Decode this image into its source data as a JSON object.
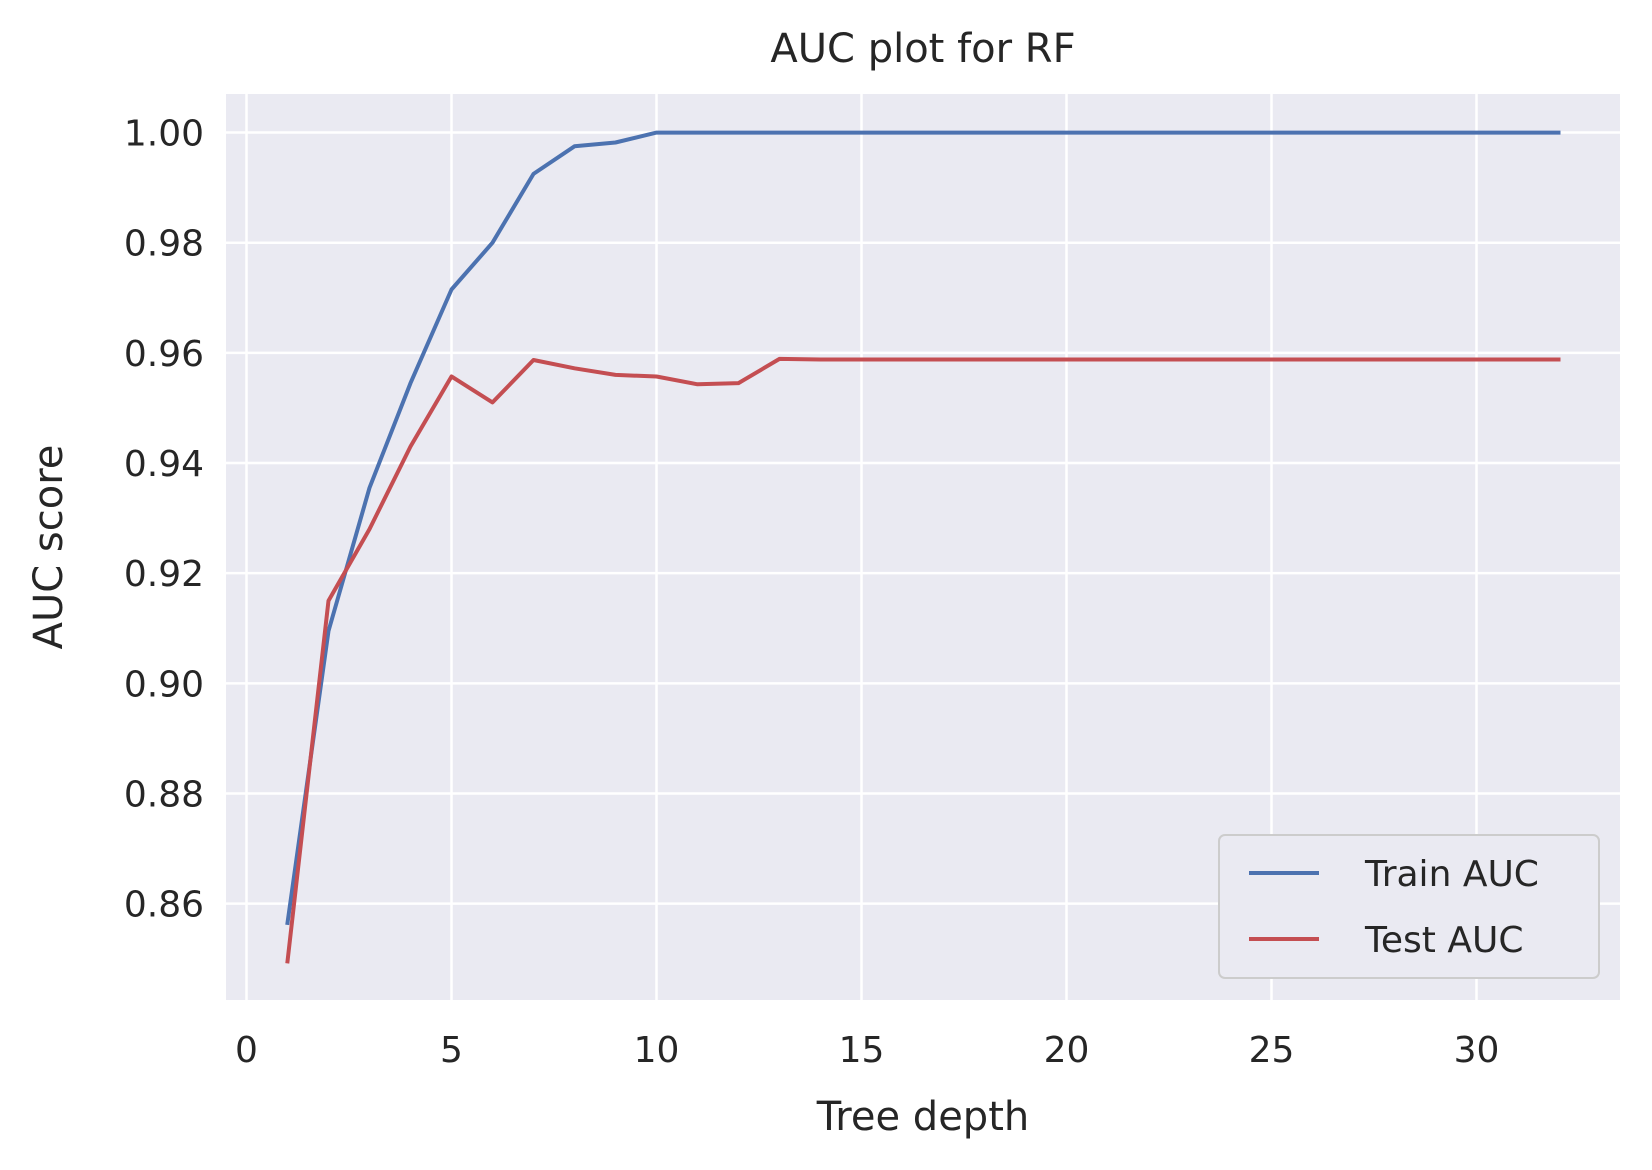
{
  "chart_data": {
    "type": "line",
    "title": "AUC plot for RF",
    "xlabel": "Tree depth",
    "ylabel": "AUC score",
    "xlim": [
      -0.5,
      33.5
    ],
    "ylim": [
      0.8425,
      1.007
    ],
    "xticks": [
      0,
      5,
      10,
      15,
      20,
      25,
      30
    ],
    "xtick_labels": [
      "0",
      "5",
      "10",
      "15",
      "20",
      "25",
      "30"
    ],
    "yticks": [
      0.86,
      0.88,
      0.9,
      0.92,
      0.94,
      0.96,
      0.98,
      1.0
    ],
    "ytick_labels": [
      "0.86",
      "0.88",
      "0.90",
      "0.92",
      "0.94",
      "0.96",
      "0.98",
      "1.00"
    ],
    "grid": true,
    "legend_position": "lower-right",
    "x": [
      1,
      2,
      3,
      4,
      5,
      6,
      7,
      8,
      9,
      10,
      11,
      12,
      13,
      14,
      15,
      16,
      17,
      18,
      19,
      20,
      21,
      22,
      23,
      24,
      25,
      26,
      27,
      28,
      29,
      30,
      31,
      32
    ],
    "series": [
      {
        "name": "Train AUC",
        "color": "#4c72b0",
        "values": [
          0.8565,
          0.9095,
          0.9355,
          0.9545,
          0.9715,
          0.98,
          0.9925,
          0.9975,
          0.9982,
          1.0,
          1.0,
          1.0,
          1.0,
          1.0,
          1.0,
          1.0,
          1.0,
          1.0,
          1.0,
          1.0,
          1.0,
          1.0,
          1.0,
          1.0,
          1.0,
          1.0,
          1.0,
          1.0,
          1.0,
          1.0,
          1.0,
          1.0
        ]
      },
      {
        "name": "Test AUC",
        "color": "#c44e52",
        "values": [
          0.8495,
          0.915,
          0.928,
          0.943,
          0.9557,
          0.951,
          0.9587,
          0.9572,
          0.956,
          0.9557,
          0.9543,
          0.9545,
          0.9589,
          0.9588,
          0.9588,
          0.9588,
          0.9588,
          0.9588,
          0.9588,
          0.9588,
          0.9588,
          0.9588,
          0.9588,
          0.9588,
          0.9588,
          0.9588,
          0.9588,
          0.9588,
          0.9588,
          0.9588,
          0.9588,
          0.9588
        ]
      }
    ],
    "colors": {
      "plot_background": "#eaeaf2",
      "grid": "#ffffff",
      "text": "#262626"
    }
  }
}
